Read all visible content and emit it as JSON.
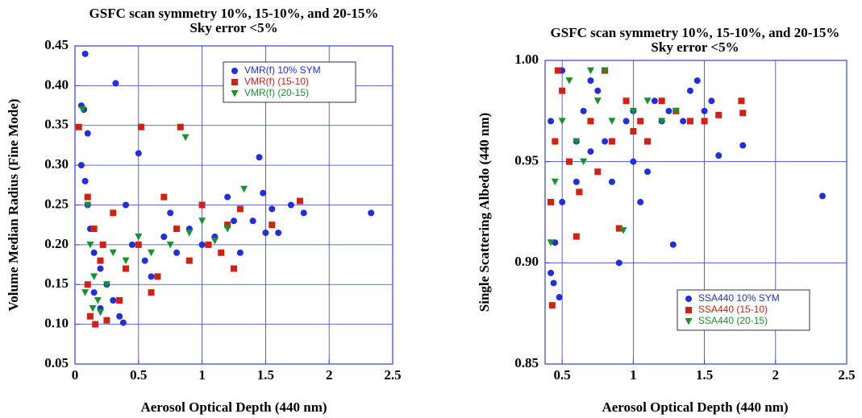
{
  "chart_data": [
    {
      "type": "scatter",
      "title": "GSFC scan symmetry 10%, 15-10%, and 20-15%",
      "subtitle": "Sky error <5%",
      "x_label": "Aerosol Optical Depth (440 nm)",
      "y_label": "Volume Median Radius (Fine Mode)",
      "xlim": [
        0,
        2.5
      ],
      "xticks": [
        0,
        0.5,
        1,
        1.5,
        2,
        2.5
      ],
      "ylim": [
        0.05,
        0.45
      ],
      "yticks": [
        0.05,
        {
          "value": 0.1,
          "label": "0.10"
        },
        0.15,
        {
          "value": 0.2,
          "label": "0.20"
        },
        0.25,
        {
          "value": 0.3,
          "label": "0.30"
        },
        0.35,
        {
          "value": 0.4,
          "label": "0.40"
        },
        0.45
      ],
      "grid": true,
      "legend": "upper right",
      "series": [
        {
          "name": "VMR(f)  10% SYM",
          "color": "#1f2fe0",
          "marker": "circle",
          "x": [
            0.08,
            0.32,
            0.05,
            0.07,
            0.1,
            0.05,
            0.08,
            0.1,
            0.12,
            0.15,
            0.2,
            0.25,
            0.3,
            0.35,
            0.38,
            0.5,
            0.45,
            0.55,
            0.6,
            0.7,
            0.75,
            0.8,
            0.9,
            1.0,
            1.1,
            1.2,
            1.25,
            1.3,
            1.4,
            1.45,
            1.48,
            1.5,
            1.55,
            1.6,
            1.7,
            1.8,
            2.33,
            0.2,
            0.15,
            0.4
          ],
          "y": [
            0.44,
            0.403,
            0.375,
            0.37,
            0.34,
            0.3,
            0.28,
            0.25,
            0.22,
            0.19,
            0.17,
            0.15,
            0.13,
            0.11,
            0.102,
            0.315,
            0.2,
            0.18,
            0.16,
            0.21,
            0.24,
            0.19,
            0.22,
            0.2,
            0.21,
            0.26,
            0.23,
            0.19,
            0.23,
            0.31,
            0.265,
            0.215,
            0.245,
            0.215,
            0.25,
            0.24,
            0.24,
            0.12,
            0.14,
            0.25
          ]
        },
        {
          "name": "VMR(f)  (15-10)",
          "color": "#d42010",
          "marker": "square",
          "x": [
            0.03,
            0.52,
            0.83,
            0.1,
            0.15,
            0.2,
            0.1,
            0.12,
            0.16,
            0.25,
            0.3,
            0.4,
            0.5,
            0.6,
            0.7,
            0.8,
            0.9,
            1.0,
            1.05,
            1.15,
            1.2,
            1.25,
            1.3,
            1.55,
            1.77,
            0.65,
            0.35,
            0.22
          ],
          "y": [
            0.348,
            0.348,
            0.348,
            0.26,
            0.22,
            0.18,
            0.15,
            0.11,
            0.1,
            0.105,
            0.24,
            0.17,
            0.2,
            0.14,
            0.26,
            0.22,
            0.18,
            0.25,
            0.2,
            0.19,
            0.225,
            0.17,
            0.245,
            0.225,
            0.255,
            0.16,
            0.13,
            0.2
          ]
        },
        {
          "name": "VMR(f)  (20-15)",
          "color": "#16942a",
          "marker": "triangle",
          "x": [
            0.06,
            0.87,
            0.1,
            0.12,
            0.15,
            0.18,
            0.2,
            0.25,
            0.3,
            0.4,
            0.5,
            0.6,
            0.75,
            0.9,
            1.0,
            1.1,
            1.2,
            1.33,
            0.08,
            0.14
          ],
          "y": [
            0.37,
            0.335,
            0.25,
            0.2,
            0.16,
            0.13,
            0.115,
            0.15,
            0.19,
            0.18,
            0.21,
            0.19,
            0.2,
            0.215,
            0.23,
            0.205,
            0.22,
            0.27,
            0.14,
            0.12
          ]
        }
      ]
    },
    {
      "type": "scatter",
      "title": "GSFC scan symmetry 10%, 15-10%, and 20-15%",
      "subtitle": "Sky error <5%",
      "x_label": "Aerosol Optical Depth (440 nm)",
      "y_label": "Single Scattering Albedo (440 nm)",
      "xlim": [
        0.38,
        2.5
      ],
      "xticks": [
        0.5,
        1,
        1.5,
        2,
        2.5
      ],
      "ylim": [
        0.85,
        1.0
      ],
      "yticks": [
        0.85,
        {
          "value": 0.9,
          "label": "0.90"
        },
        0.95,
        {
          "value": 1.0,
          "label": "1.00"
        }
      ],
      "grid": true,
      "legend": "lower right",
      "series": [
        {
          "name": "SSA440  10% SYM",
          "color": "#1f2fe0",
          "marker": "circle",
          "x": [
            0.42,
            0.44,
            0.48,
            0.45,
            0.5,
            0.55,
            0.6,
            0.65,
            0.7,
            0.75,
            0.8,
            0.85,
            0.9,
            0.95,
            1.0,
            1.05,
            1.1,
            1.15,
            1.2,
            1.25,
            1.28,
            1.35,
            1.4,
            1.45,
            1.5,
            1.55,
            1.6,
            1.77,
            2.33,
            0.42,
            0.5,
            0.6,
            0.7,
            1.0
          ],
          "y": [
            0.895,
            0.89,
            0.883,
            0.91,
            0.93,
            0.95,
            0.96,
            0.975,
            0.99,
            0.985,
            0.96,
            0.94,
            0.9,
            0.97,
            0.975,
            0.93,
            0.945,
            0.98,
            0.97,
            0.975,
            0.909,
            0.97,
            0.985,
            0.99,
            0.975,
            0.98,
            0.953,
            0.958,
            0.933,
            0.97,
            0.995,
            0.94,
            0.955,
            0.95
          ]
        },
        {
          "name": "SSA440  (15-10)",
          "color": "#d42010",
          "marker": "square",
          "x": [
            0.43,
            0.42,
            0.45,
            0.5,
            0.55,
            0.6,
            0.62,
            0.7,
            0.75,
            0.8,
            0.85,
            0.9,
            0.95,
            1.0,
            1.05,
            1.1,
            1.2,
            1.3,
            1.4,
            1.5,
            1.6,
            1.76,
            1.77,
            0.47
          ],
          "y": [
            0.879,
            0.93,
            0.96,
            0.985,
            0.95,
            0.913,
            0.935,
            0.97,
            0.945,
            0.995,
            0.96,
            0.917,
            0.98,
            0.965,
            0.97,
            0.96,
            0.98,
            0.975,
            0.97,
            0.97,
            0.973,
            0.98,
            0.974,
            0.995
          ]
        },
        {
          "name": "SSA440  (20-15)",
          "color": "#16942a",
          "marker": "triangle",
          "x": [
            0.42,
            0.45,
            0.5,
            0.55,
            0.6,
            0.7,
            0.8,
            0.93,
            0.85,
            1.0,
            1.1,
            1.2,
            1.3,
            0.65,
            0.75
          ],
          "y": [
            0.91,
            0.94,
            0.97,
            0.99,
            0.96,
            0.995,
            0.995,
            0.916,
            0.97,
            0.975,
            0.98,
            0.97,
            0.975,
            0.95,
            0.98
          ]
        }
      ]
    }
  ]
}
